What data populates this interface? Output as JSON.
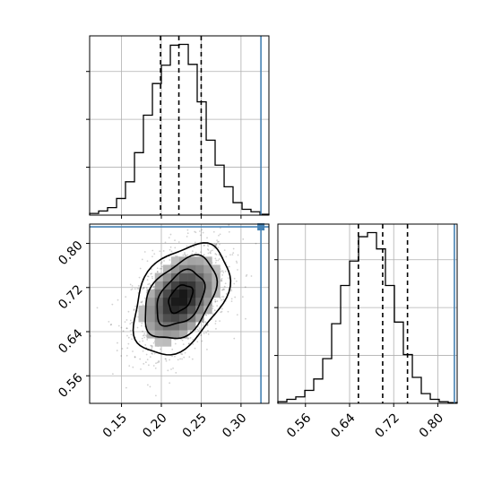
{
  "chart_data": {
    "type": "corner",
    "parameters": [
      {
        "name": "",
        "ticks": [
          "0.15",
          "0.20",
          "0.25",
          "0.30"
        ],
        "tick_values": [
          0.15,
          0.2,
          0.25,
          0.3
        ],
        "range": [
          0.11,
          0.335
        ]
      },
      {
        "name": "",
        "ticks": [
          "0.56",
          "0.64",
          "0.72",
          "0.80"
        ],
        "tick_values": [
          0.56,
          0.64,
          0.72,
          0.8
        ],
        "range": [
          0.51,
          0.835
        ]
      }
    ],
    "truth_values": [
      0.325,
      0.83
    ],
    "quantiles": [
      {
        "param": 0,
        "values": [
          0.199,
          0.222,
          0.25
        ]
      },
      {
        "param": 1,
        "values": [
          0.656,
          0.7,
          0.745
        ]
      }
    ],
    "histograms": [
      {
        "param": 0,
        "bin_edges": [
          0.11,
          0.1213,
          0.1325,
          0.1438,
          0.155,
          0.1663,
          0.1775,
          0.1888,
          0.2,
          0.2113,
          0.2225,
          0.2338,
          0.245,
          0.2563,
          0.2675,
          0.2788,
          0.29,
          0.3013,
          0.3125,
          0.3238,
          0.335
        ],
        "counts": [
          2,
          5,
          9,
          20,
          40,
          75,
          120,
          158,
          180,
          204,
          205,
          181,
          136,
          90,
          60,
          34,
          15,
          7,
          4,
          1
        ]
      },
      {
        "param": 1,
        "bin_edges": [
          0.51,
          0.5263,
          0.5425,
          0.5588,
          0.575,
          0.5913,
          0.6075,
          0.6238,
          0.64,
          0.6563,
          0.6725,
          0.6888,
          0.705,
          0.7213,
          0.7375,
          0.7538,
          0.77,
          0.7863,
          0.8025,
          0.8188,
          0.835
        ],
        "counts": [
          2,
          5,
          8,
          16,
          30,
          55,
          98,
          145,
          175,
          205,
          210,
          190,
          145,
          100,
          60,
          32,
          12,
          5,
          2,
          1
        ]
      }
    ],
    "joint": {
      "params": [
        0,
        1
      ],
      "center": [
        0.224,
        0.7
      ],
      "sigma": [
        0.03,
        0.05
      ],
      "correlation": 0.4,
      "contour_levels": [
        0.5,
        1.0,
        1.5,
        2.0
      ]
    }
  }
}
